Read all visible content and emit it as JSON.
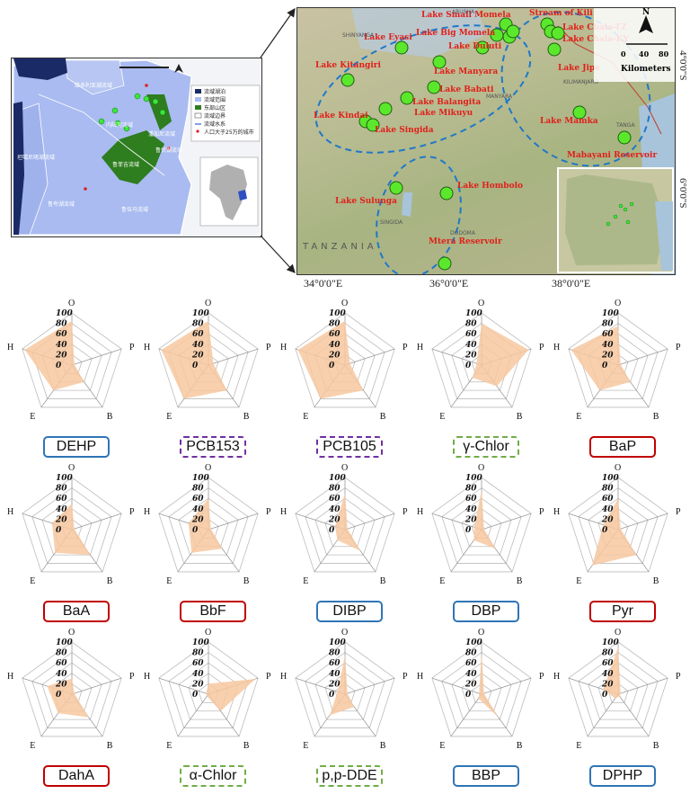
{
  "left_map": {
    "legend": [
      "流域湖泊",
      "流域范围",
      "东部山区",
      "流域边界",
      "流域水系",
      "人口大于25万的城市"
    ],
    "basin_labels": [
      "维多利亚湖流域",
      "内陆河流域",
      "潘加尼流域",
      "鲁伏湖流域",
      "鲁菲吉流域",
      "鲁伍马流域",
      "鲁夸湖流域",
      "坦噶尼喀湖流域"
    ],
    "colors": {
      "lake": "#1a2a66",
      "basin": "#a9bbf0",
      "mountain": "#2e7d1f",
      "site": "#38e838",
      "city": "#e02020"
    }
  },
  "right_map": {
    "lakes": [
      {
        "name": "Lake Small Momela"
      },
      {
        "name": "Stream of Kili"
      },
      {
        "name": "Lake Big Momela"
      },
      {
        "name": "Lake Eyasi"
      },
      {
        "name": "Lake Duluti"
      },
      {
        "name": "Lake Chala-TZ"
      },
      {
        "name": "Lake Chala-KY"
      },
      {
        "name": "Lake Kitangiri"
      },
      {
        "name": "Lake Manyara"
      },
      {
        "name": "Lake Jipe"
      },
      {
        "name": "Lake Babati"
      },
      {
        "name": "Lake Balangita"
      },
      {
        "name": "Lake Kindai"
      },
      {
        "name": "Lake Mikuyu"
      },
      {
        "name": "Lake Singida"
      },
      {
        "name": "Lake Mamka"
      },
      {
        "name": "Mabayani Reservoir"
      },
      {
        "name": "Lake Sulunga"
      },
      {
        "name": "Lake Hombolo"
      },
      {
        "name": "Mtera Reservoir"
      }
    ],
    "place_names": [
      "SHINYANGA",
      "ARUSHA",
      "MANYARA",
      "KILIMANJARO",
      "TANGA",
      "SINGIDA",
      "DODOMA",
      "TANZANIA"
    ],
    "scale": {
      "ticks": [
        "0",
        "40",
        "80"
      ],
      "unit": "Kilometers"
    },
    "north": "N",
    "x_ticks": [
      "34°0'0\"E",
      "36°0'0\"E",
      "38°0'0\"E"
    ],
    "y_ticks": [
      "4°0'0\"S",
      "6°0'0\"S"
    ]
  },
  "radar": {
    "axes": [
      "O",
      "P",
      "B",
      "E",
      "H"
    ],
    "ticks": [
      "0",
      "20",
      "40",
      "60",
      "80",
      "100"
    ],
    "fill_color": "#f7c8a0",
    "group_colors": {
      "blue": "#2e75b6",
      "purple": "#7030a0",
      "green": "#70ad47",
      "red": "#c00000"
    }
  },
  "chart_data": [
    {
      "type": "radar",
      "name": "DEHP",
      "group": "blue",
      "border": "solid",
      "axes": [
        "O",
        "P",
        "B",
        "E",
        "H"
      ],
      "values": [
        85,
        5,
        40,
        60,
        95
      ]
    },
    {
      "type": "radar",
      "name": "PCB153",
      "group": "purple",
      "border": "dashed",
      "axes": [
        "O",
        "P",
        "B",
        "E",
        "H"
      ],
      "values": [
        85,
        10,
        60,
        80,
        95
      ]
    },
    {
      "type": "radar",
      "name": "PCB105",
      "group": "purple",
      "border": "dashed",
      "axes": [
        "O",
        "P",
        "B",
        "E",
        "H"
      ],
      "values": [
        85,
        10,
        60,
        80,
        95
      ]
    },
    {
      "type": "radar",
      "name": "γ-Chlor",
      "group": "green",
      "border": "dashed",
      "axes": [
        "O",
        "P",
        "B",
        "E",
        "H"
      ],
      "values": [
        80,
        95,
        50,
        30,
        10
      ]
    },
    {
      "type": "radar",
      "name": "BaP",
      "group": "red",
      "border": "solid",
      "axes": [
        "O",
        "P",
        "B",
        "E",
        "H"
      ],
      "values": [
        75,
        5,
        40,
        60,
        95
      ]
    },
    {
      "type": "radar",
      "name": "BaA",
      "group": "red",
      "border": "solid",
      "axes": [
        "O",
        "P",
        "B",
        "E",
        "H"
      ],
      "values": [
        50,
        5,
        60,
        55,
        40
      ]
    },
    {
      "type": "radar",
      "name": "BbF",
      "group": "red",
      "border": "solid",
      "axes": [
        "O",
        "P",
        "B",
        "E",
        "H"
      ],
      "values": [
        60,
        5,
        45,
        55,
        40
      ]
    },
    {
      "type": "radar",
      "name": "DIBP",
      "group": "blue",
      "border": "solid",
      "axes": [
        "O",
        "P",
        "B",
        "E",
        "H"
      ],
      "values": [
        70,
        5,
        50,
        25,
        20
      ]
    },
    {
      "type": "radar",
      "name": "DBP",
      "group": "blue",
      "border": "solid",
      "axes": [
        "O",
        "P",
        "B",
        "E",
        "H"
      ],
      "values": [
        75,
        5,
        45,
        25,
        15
      ]
    },
    {
      "type": "radar",
      "name": "Pyr",
      "group": "red",
      "border": "solid",
      "axes": [
        "O",
        "P",
        "B",
        "E",
        "H"
      ],
      "values": [
        60,
        5,
        60,
        85,
        30
      ]
    },
    {
      "type": "radar",
      "name": "DahA",
      "group": "red",
      "border": "solid",
      "axes": [
        "O",
        "P",
        "B",
        "E",
        "H"
      ],
      "values": [
        30,
        5,
        55,
        45,
        50
      ]
    },
    {
      "type": "radar",
      "name": "α-Chlor",
      "group": "green",
      "border": "dashed",
      "axes": [
        "O",
        "P",
        "B",
        "E",
        "H"
      ],
      "values": [
        20,
        95,
        40,
        5,
        5
      ]
    },
    {
      "type": "radar",
      "name": "p,p-DDE",
      "group": "green",
      "border": "dashed",
      "axes": [
        "O",
        "P",
        "B",
        "E",
        "H"
      ],
      "values": [
        75,
        5,
        30,
        50,
        15
      ]
    },
    {
      "type": "radar",
      "name": "BBP",
      "group": "blue",
      "border": "solid",
      "axes": [
        "O",
        "P",
        "B",
        "E",
        "H"
      ],
      "values": [
        80,
        5,
        55,
        10,
        5
      ]
    },
    {
      "type": "radar",
      "name": "DPHP",
      "group": "blue",
      "border": "solid",
      "axes": [
        "O",
        "P",
        "B",
        "E",
        "H"
      ],
      "values": [
        90,
        5,
        5,
        10,
        30
      ]
    }
  ]
}
